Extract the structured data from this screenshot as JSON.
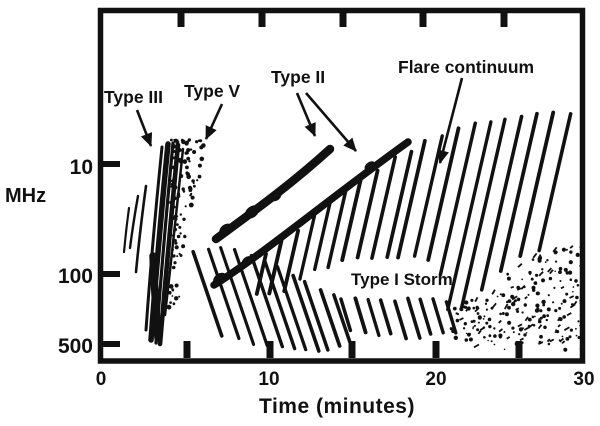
{
  "diagram": {
    "accent_color": "#34B8B1",
    "ink_color": "#111111",
    "labels": {
      "type_iii": "Type III",
      "type_v": "Type V",
      "type_ii": "Type II",
      "flare_continuum": "Flare continuum",
      "type_i_storm": "Type I Storm"
    },
    "y_axis": {
      "unit": "MHz",
      "ticks": [
        "10",
        "100",
        "500"
      ]
    },
    "x_axis": {
      "title": "Time (minutes)",
      "ticks": [
        "0",
        "10",
        "20",
        "30"
      ]
    },
    "features": [
      {
        "name": "Type III bursts",
        "time_minutes": "2-4",
        "frequency_MHz": "10-500"
      },
      {
        "name": "Type V",
        "time_minutes": "4-6",
        "frequency_MHz": "10-100"
      },
      {
        "name": "Type II burst, two drifting harmonic bands",
        "time_minutes": "7-19",
        "frequency_MHz": "100 drifting to 10"
      },
      {
        "name": "Flare continuum",
        "time_minutes": "8-30",
        "frequency_MHz": "10-100"
      },
      {
        "name": "Type I Storm",
        "time_minutes": "6-30",
        "frequency_MHz": "100-500"
      },
      {
        "name": "storm continuum (stippled)",
        "time_minutes": "21-30",
        "frequency_MHz": "100-500"
      }
    ]
  }
}
